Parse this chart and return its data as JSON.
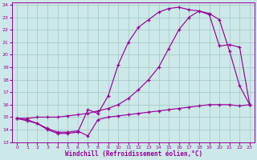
{
  "xlabel": "Windchill (Refroidissement éolien,°C)",
  "bg_color": "#cce8e8",
  "grid_color": "#aacccc",
  "line_color": "#990099",
  "xlim": [
    -0.5,
    23.5
  ],
  "ylim": [
    13,
    24.2
  ],
  "xticks": [
    0,
    1,
    2,
    3,
    4,
    5,
    6,
    7,
    8,
    9,
    10,
    11,
    12,
    13,
    14,
    15,
    16,
    17,
    18,
    19,
    20,
    21,
    22,
    23
  ],
  "yticks": [
    13,
    14,
    15,
    16,
    17,
    18,
    19,
    20,
    21,
    22,
    23,
    24
  ],
  "line1_x": [
    0,
    1,
    2,
    3,
    4,
    5,
    6,
    7,
    8,
    9,
    10,
    11,
    12,
    13,
    14,
    15,
    16,
    17,
    18,
    19,
    20,
    21,
    22,
    23
  ],
  "line1_y": [
    14.9,
    14.8,
    14.5,
    14.0,
    13.7,
    13.7,
    13.8,
    15.6,
    15.3,
    16.7,
    19.2,
    21.0,
    22.2,
    22.8,
    23.4,
    23.7,
    23.8,
    23.6,
    23.5,
    23.2,
    20.7,
    20.8,
    20.6,
    16.0
  ],
  "line2_x": [
    0,
    1,
    2,
    3,
    4,
    5,
    6,
    7,
    8,
    9,
    10,
    11,
    12,
    13,
    14,
    15,
    16,
    17,
    18,
    19,
    20,
    21,
    22,
    23
  ],
  "line2_y": [
    14.9,
    14.9,
    15.0,
    15.0,
    15.0,
    15.1,
    15.2,
    15.3,
    15.5,
    15.7,
    16.0,
    16.5,
    17.2,
    18.0,
    19.0,
    20.5,
    22.0,
    23.0,
    23.5,
    23.3,
    22.8,
    20.3,
    17.5,
    16.0
  ],
  "line3_x": [
    0,
    1,
    2,
    3,
    4,
    5,
    6,
    7,
    8,
    9,
    10,
    11,
    12,
    13,
    14,
    15,
    16,
    17,
    18,
    19,
    20,
    21,
    22,
    23
  ],
  "line3_y": [
    14.9,
    14.7,
    14.5,
    14.1,
    13.8,
    13.8,
    13.9,
    13.5,
    14.8,
    15.0,
    15.1,
    15.2,
    15.3,
    15.4,
    15.5,
    15.6,
    15.7,
    15.8,
    15.9,
    16.0,
    16.0,
    16.0,
    15.9,
    16.0
  ]
}
